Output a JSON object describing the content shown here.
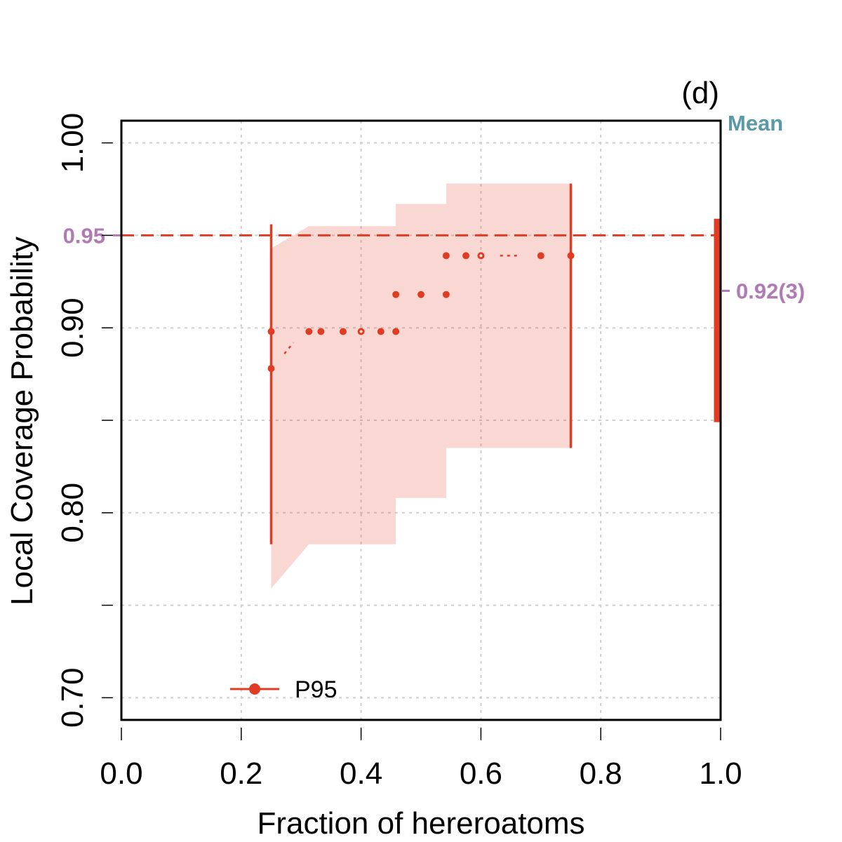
{
  "chart_data": {
    "type": "scatter",
    "panel_label": "(d)",
    "xlabel": "Fraction of hereroatoms",
    "ylabel": "Local Coverage Probability",
    "xlim": [
      0.0,
      1.0
    ],
    "ylim": [
      0.688,
      1.012
    ],
    "x_ticks": [
      0.0,
      0.2,
      0.4,
      0.6,
      0.8,
      1.0
    ],
    "x_tick_labels": [
      "0.0",
      "0.2",
      "0.4",
      "0.6",
      "0.8",
      "1.0"
    ],
    "y_ticks": [
      0.7,
      0.75,
      0.8,
      0.85,
      0.9,
      0.95,
      1.0
    ],
    "y_tick_labels": [
      "0.70",
      "",
      "0.80",
      "",
      "0.90",
      "",
      "1.00"
    ],
    "grid": true,
    "target_line": {
      "value": 0.95,
      "label": "0.95",
      "style": "dashed"
    },
    "mean": {
      "title": "Mean",
      "value": 0.92,
      "label": "0.92(3)",
      "range": [
        0.849,
        0.959
      ]
    },
    "series": [
      {
        "name": "P95",
        "color": "#E03C24",
        "points": [
          {
            "x": 0.25,
            "y": 0.878,
            "filled": true
          },
          {
            "x": 0.25,
            "y": 0.898,
            "filled": true
          },
          {
            "x": 0.313,
            "y": 0.898,
            "filled": true
          },
          {
            "x": 0.333,
            "y": 0.898,
            "filled": true
          },
          {
            "x": 0.37,
            "y": 0.898,
            "filled": true
          },
          {
            "x": 0.4,
            "y": 0.898,
            "filled": false
          },
          {
            "x": 0.433,
            "y": 0.898,
            "filled": true
          },
          {
            "x": 0.458,
            "y": 0.898,
            "filled": true
          },
          {
            "x": 0.458,
            "y": 0.918,
            "filled": true
          },
          {
            "x": 0.5,
            "y": 0.918,
            "filled": true
          },
          {
            "x": 0.542,
            "y": 0.918,
            "filled": true
          },
          {
            "x": 0.542,
            "y": 0.939,
            "filled": true
          },
          {
            "x": 0.575,
            "y": 0.939,
            "filled": true
          },
          {
            "x": 0.6,
            "y": 0.939,
            "filled": false
          },
          {
            "x": 0.7,
            "y": 0.939,
            "filled": true
          },
          {
            "x": 0.75,
            "y": 0.939,
            "filled": true
          }
        ],
        "dotted_segments": [
          [
            [
              0.272,
              0.886
            ],
            [
              0.287,
              0.892
            ]
          ],
          [
            [
              0.632,
              0.939
            ],
            [
              0.667,
              0.939
            ]
          ]
        ],
        "band": {
          "x": [
            0.25,
            0.313,
            0.458,
            0.458,
            0.542,
            0.542,
            0.75
          ],
          "upper": [
            0.943,
            0.955,
            0.955,
            0.967,
            0.967,
            0.978,
            0.978
          ],
          "lower": [
            0.759,
            0.783,
            0.783,
            0.808,
            0.808,
            0.835,
            0.835
          ]
        },
        "range_bars": [
          {
            "x": 0.25,
            "low": 0.783,
            "high": 0.956
          },
          {
            "x": 0.75,
            "low": 0.835,
            "high": 0.978
          }
        ]
      }
    ]
  }
}
